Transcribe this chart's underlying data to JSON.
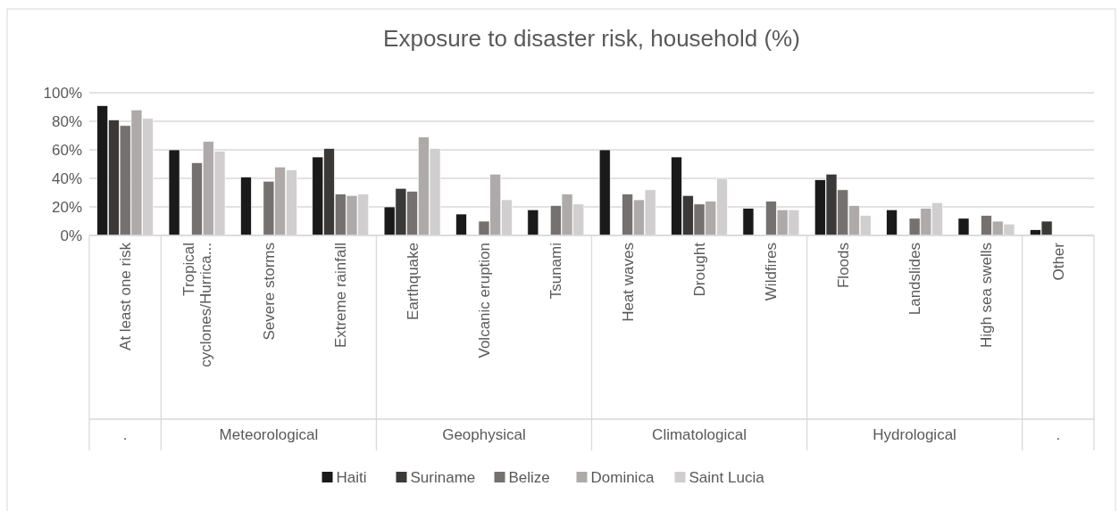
{
  "chart_data": {
    "type": "bar",
    "title": "Exposure to disaster risk, household (%)",
    "categories": [
      "At least one risk",
      "Tropical cyclones/Hurrica...",
      "Severe storms",
      "Extreme rainfall",
      "Earthquake",
      "Volcanic eruption",
      "Tsunami",
      "Heat waves",
      "Drought",
      "Wildfires",
      "Floods",
      "Landslides",
      "High sea swells",
      "Other"
    ],
    "series": [
      {
        "name": "Haiti",
        "color": "#1a1a1a",
        "values": [
          91,
          60,
          41,
          55,
          20,
          15,
          18,
          60,
          55,
          19,
          39,
          18,
          12,
          4
        ]
      },
      {
        "name": "Suriname",
        "color": "#3b3937",
        "values": [
          81,
          null,
          null,
          61,
          33,
          null,
          null,
          null,
          28,
          null,
          43,
          null,
          null,
          10
        ]
      },
      {
        "name": "Belize",
        "color": "#757170",
        "values": [
          77,
          51,
          38,
          29,
          31,
          10,
          21,
          29,
          22,
          24,
          32,
          12,
          14,
          null
        ]
      },
      {
        "name": "Dominica",
        "color": "#aeaaaa",
        "values": [
          88,
          66,
          48,
          28,
          69,
          43,
          29,
          25,
          24,
          18,
          21,
          19,
          10,
          null
        ]
      },
      {
        "name": "Saint Lucia",
        "color": "#d0cece",
        "values": [
          82,
          59,
          46,
          29,
          61,
          25,
          22,
          32,
          40,
          18,
          14,
          23,
          8,
          null
        ]
      }
    ],
    "annotations": [
      ".",
      "Meteorological",
      "Geophysical",
      "Climatological",
      "Hydrological",
      "."
    ],
    "ylim": [
      0,
      100
    ],
    "yticks": [
      {
        "value": 0,
        "label": "0%"
      },
      {
        "value": 20,
        "label": "20%"
      },
      {
        "value": 40,
        "label": "40%"
      },
      {
        "value": 60,
        "label": "60%"
      },
      {
        "value": 80,
        "label": "80%"
      },
      {
        "value": 100,
        "label": "100%"
      }
    ],
    "grid": "y",
    "legend": "bottom"
  }
}
